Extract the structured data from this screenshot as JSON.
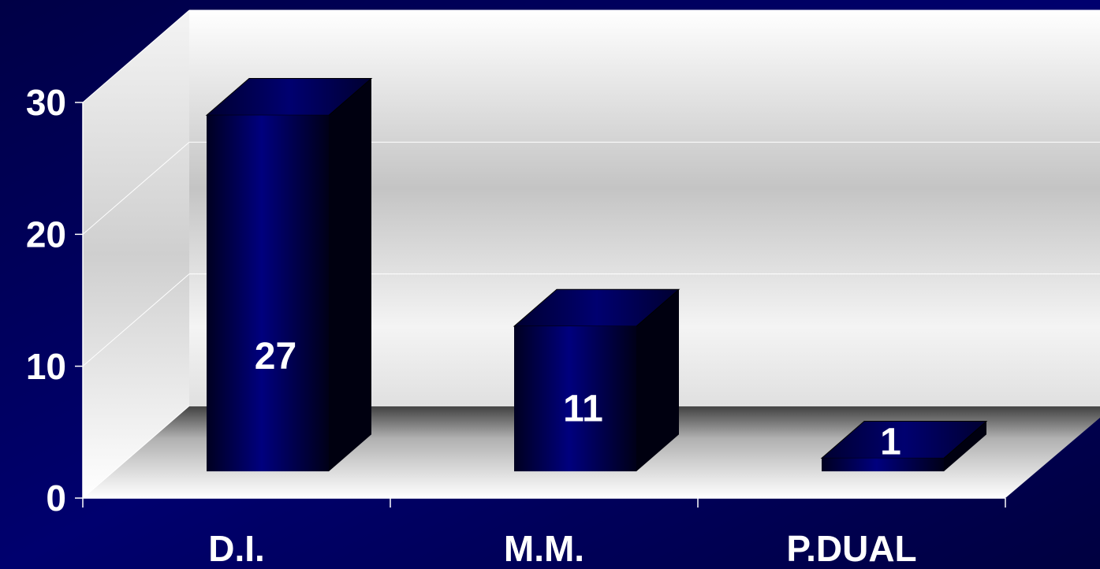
{
  "chart_data": {
    "type": "bar3d",
    "categories": [
      "D.I.",
      "M.M.",
      "P.DUAL"
    ],
    "values": [
      27,
      11,
      1
    ],
    "color": "#00007a",
    "ylim": [
      0,
      30
    ],
    "yticks": [
      0,
      10,
      20,
      30
    ],
    "grid": true
  }
}
